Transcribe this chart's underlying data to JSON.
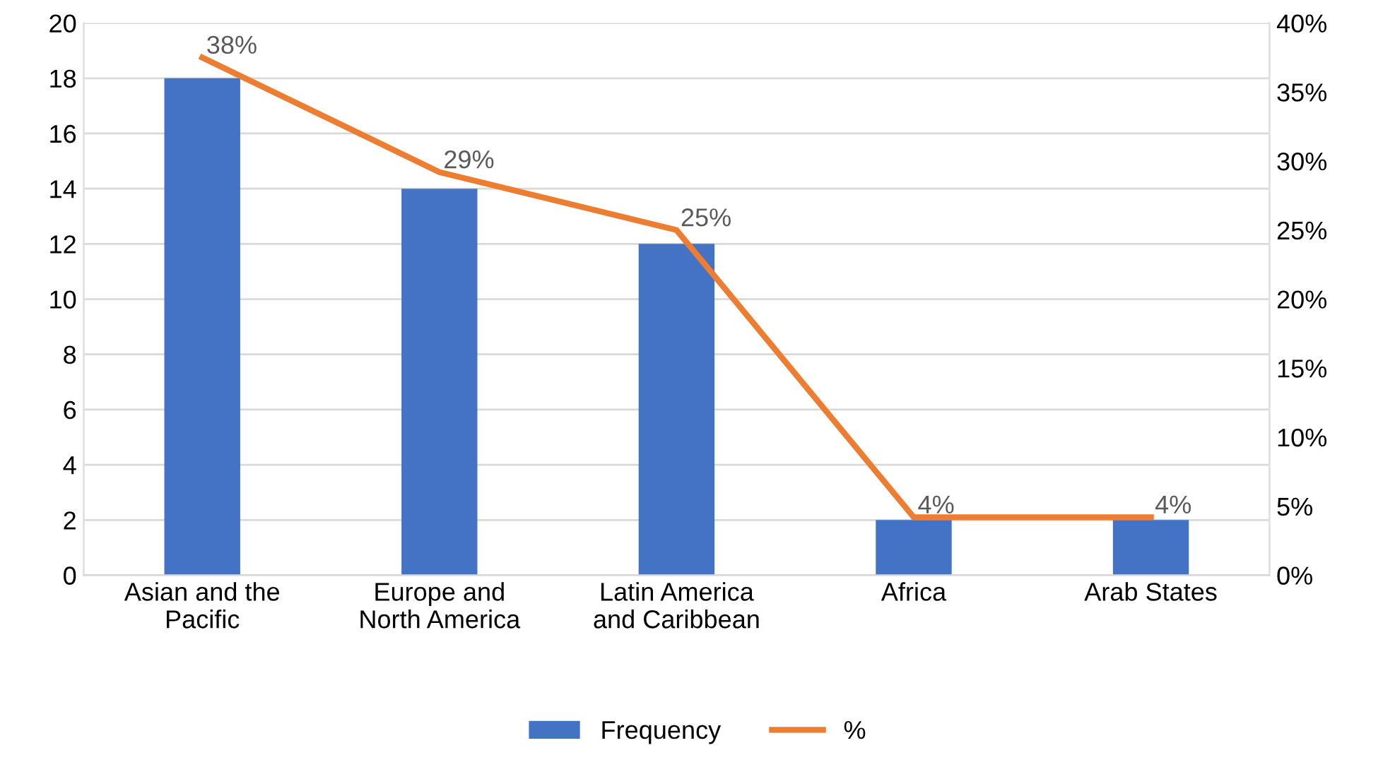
{
  "chart_data": {
    "type": "bar",
    "categories": [
      "Asian and the\nPacific",
      "Europe and\nNorth America",
      "Latin America\nand Caribbean",
      "Africa",
      "Arab States"
    ],
    "series": [
      {
        "name": "Frequency",
        "color": "#4472c4",
        "values": [
          18,
          14,
          12,
          2,
          2
        ]
      },
      {
        "name": "%",
        "type": "line",
        "axis": "y2",
        "color": "#ed7d31",
        "values": [
          37.5,
          29.2,
          25,
          4.2,
          4.2
        ],
        "value_labels": [
          "38%",
          "29%",
          "25%",
          "4%",
          "4%"
        ]
      }
    ],
    "ylim": [
      0,
      20
    ],
    "yticks": [
      0,
      2,
      4,
      6,
      8,
      10,
      12,
      14,
      16,
      18,
      20
    ],
    "y2lim": [
      0,
      40
    ],
    "y2ticks": [
      {
        "value": 0,
        "label": "0%"
      },
      {
        "value": 5,
        "label": "5%"
      },
      {
        "value": 10,
        "label": "10%"
      },
      {
        "value": 15,
        "label": "15%"
      },
      {
        "value": 20,
        "label": "20%"
      },
      {
        "value": 25,
        "label": "25%"
      },
      {
        "value": 30,
        "label": "30%"
      },
      {
        "value": 35,
        "label": "35%"
      },
      {
        "value": 40,
        "label": "40%"
      }
    ],
    "grid": "y",
    "legend": "bottom",
    "marker": "none",
    "line_style": "solid"
  }
}
